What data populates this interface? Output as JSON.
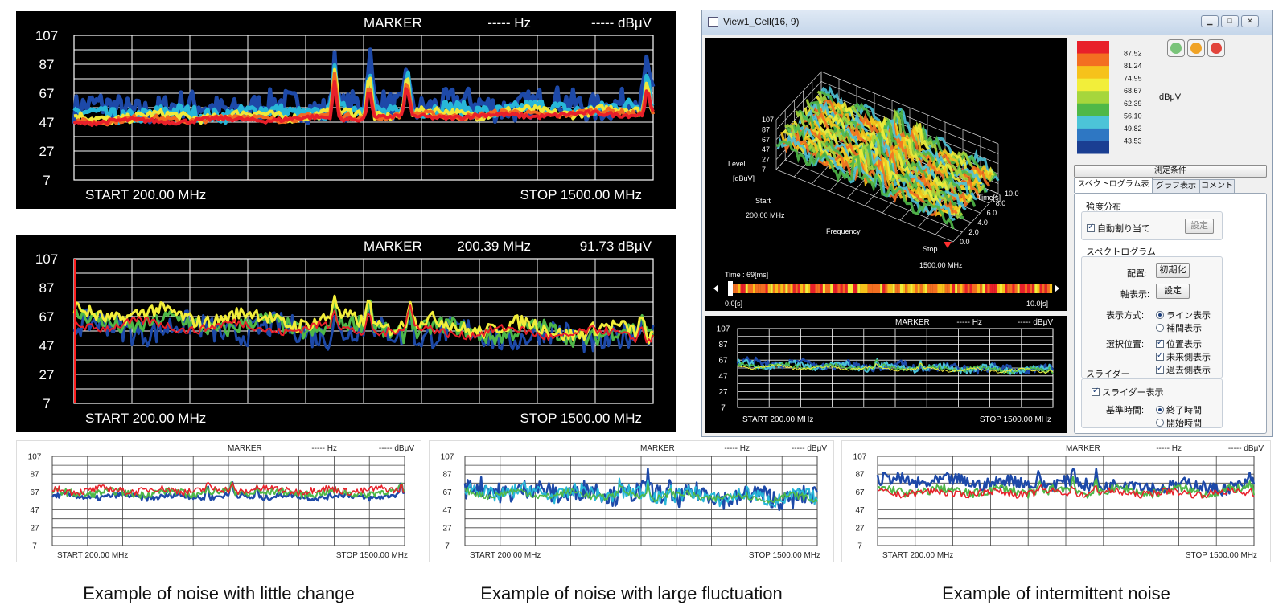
{
  "large_charts": [
    {
      "y_ticks": [
        "107",
        "87",
        "67",
        "47",
        "27",
        "7"
      ],
      "marker_label": "MARKER",
      "marker_freq": "----- Hz",
      "marker_level": "----- dBμV",
      "start_label": "START   200.00 MHz",
      "stop_label": "STOP   1500.00 MHz",
      "style": "spectrogram"
    },
    {
      "y_ticks": [
        "107",
        "87",
        "67",
        "47",
        "27",
        "7"
      ],
      "marker_label": "MARKER",
      "marker_freq": "200.39 MHz",
      "marker_level": "91.73 dBμV",
      "start_label": "START   200.00 MHz",
      "stop_label": "STOP   1500.00 MHz",
      "style": "fluctuating"
    }
  ],
  "small_charts": [
    {
      "y_ticks": [
        "107",
        "87",
        "67",
        "47",
        "27",
        "7"
      ],
      "marker_label": "MARKER",
      "marker_freq": "----- Hz",
      "marker_level": "----- dBμV",
      "start_label": "START   200.00 MHz",
      "stop_label": "STOP   1500.00 MHz",
      "caption": "Example of noise with little change"
    },
    {
      "y_ticks": [
        "107",
        "87",
        "67",
        "47",
        "27",
        "7"
      ],
      "marker_label": "MARKER",
      "marker_freq": "----- Hz",
      "marker_level": "----- dBμV",
      "start_label": "START   200.00 MHz",
      "stop_label": "STOP   1500.00 MHz",
      "caption": "Example of noise with large fluctuation"
    },
    {
      "y_ticks": [
        "107",
        "87",
        "67",
        "47",
        "27",
        "7"
      ],
      "marker_label": "MARKER",
      "marker_freq": "----- Hz",
      "marker_level": "----- dBμV",
      "start_label": "START   200.00 MHz",
      "stop_label": "STOP   1500.00 MHz",
      "caption": "Example of intermittent noise"
    }
  ],
  "window": {
    "title": "View1_Cell(16, 9)",
    "controls": {
      "minimize": "▁",
      "maximize": "□",
      "close": "✕"
    },
    "plot3d": {
      "level_label": "Level",
      "level_unit": "[dBuV]",
      "level_ticks": [
        "107",
        "87",
        "67",
        "47",
        "27",
        "7"
      ],
      "time_ticks": [
        "10.0",
        "8.0",
        "6.0",
        "4.0",
        "2.0",
        "0.0"
      ],
      "time_label": "Time[s]",
      "start_label": "Start",
      "start_freq": "200.00 MHz",
      "frequency_label": "Frequency",
      "stop_label": "Stop",
      "stop_freq": "1500.00 MHz",
      "time_readout": "Time : 69[ms]",
      "slider_start": "0.0[s]",
      "slider_end": "10.0[s]"
    },
    "colorbar": {
      "values": [
        "87.52",
        "81.24",
        "74.95",
        "68.67",
        "62.39",
        "56.10",
        "49.82",
        "43.53"
      ],
      "unit": "dBμV",
      "colors": [
        "#e8202a",
        "#f36f21",
        "#f6c21b",
        "#f2ee3a",
        "#a6d63c",
        "#4fb848",
        "#4cc4d8",
        "#2e77c3",
        "#1a3e92"
      ]
    },
    "small_spectrum": {
      "y_ticks": [
        "107",
        "87",
        "67",
        "47",
        "27",
        "7"
      ],
      "marker_label": "MARKER",
      "marker_freq": "----- Hz",
      "marker_level": "----- dBμV",
      "start_label": "START   200.00 MHz",
      "stop_label": "STOP   1500.00 MHz"
    },
    "settings": {
      "section_header": "測定条件",
      "tabs": [
        "スペクトログラム表示",
        "グラフ表示",
        "コメント"
      ],
      "intensity": {
        "title": "強度分布",
        "auto_assign": "自動割り当て",
        "set_button": "設定"
      },
      "spectrogram": {
        "title": "スペクトログラム",
        "layout_label": "配置:",
        "layout_button": "初期化",
        "axis_label": "軸表示:",
        "axis_button": "設定",
        "display_label": "表示方式:",
        "display_line": "ライン表示",
        "display_interp": "補間表示",
        "select_label": "選択位置:",
        "position_show": "位置表示",
        "future_show": "未来側表示",
        "past_show": "過去側表示"
      },
      "slider": {
        "title": "スライダー",
        "slider_show": "スライダー表示",
        "ref_label": "基準時間:",
        "end_time": "終了時間",
        "start_time": "開始時間"
      }
    }
  }
}
